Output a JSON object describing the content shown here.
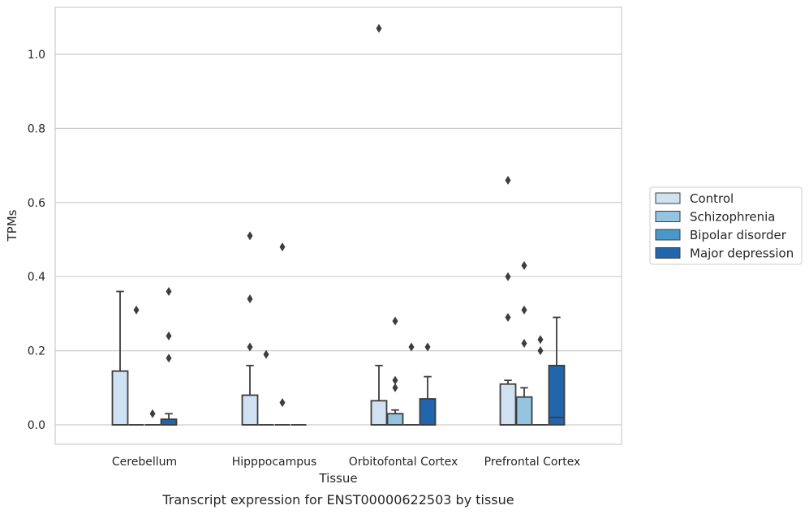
{
  "chart_data": {
    "type": "box",
    "xlabel": "Tissue",
    "ylabel": "TPMs",
    "caption": "Transcript expression for ENST00000622503 by tissue",
    "ylim": [
      -0.05,
      1.13
    ],
    "yticks": [
      "0.0",
      "0.2",
      "0.4",
      "0.6",
      "0.8",
      "1.0"
    ],
    "grid": "horizontal",
    "legend_position": "right",
    "categories": [
      "Cerebellum",
      "Hipppocampus",
      "Orbitofontal Cortex",
      "Prefrontal Cortex"
    ],
    "series": [
      {
        "name": "Control",
        "color": "#d0e1f2"
      },
      {
        "name": "Schizophrenia",
        "color": "#94c4df"
      },
      {
        "name": "Bipolar disorder",
        "color": "#4a98c9"
      },
      {
        "name": "Major depression",
        "color": "#2166ac"
      }
    ],
    "boxes": [
      [
        {
          "q1": 0,
          "median": 0,
          "q3": 0.145,
          "whisker_low": 0,
          "whisker_high": 0.36,
          "outliers": []
        },
        {
          "q1": 0,
          "median": 0,
          "q3": 0,
          "whisker_low": 0,
          "whisker_high": 0,
          "outliers": [
            0.31
          ]
        },
        {
          "q1": 0,
          "median": 0,
          "q3": 0,
          "whisker_low": 0,
          "whisker_high": 0,
          "outliers": [
            0.03
          ]
        },
        {
          "q1": 0,
          "median": 0,
          "q3": 0.015,
          "whisker_low": 0,
          "whisker_high": 0.03,
          "outliers": [
            0.36,
            0.24,
            0.18
          ]
        }
      ],
      [
        {
          "q1": 0,
          "median": 0,
          "q3": 0.08,
          "whisker_low": 0,
          "whisker_high": 0.16,
          "outliers": [
            0.51,
            0.34,
            0.21
          ]
        },
        {
          "q1": 0,
          "median": 0,
          "q3": 0,
          "whisker_low": 0,
          "whisker_high": 0,
          "outliers": [
            0.19
          ]
        },
        {
          "q1": 0,
          "median": 0,
          "q3": 0,
          "whisker_low": 0,
          "whisker_high": 0,
          "outliers": [
            0.48,
            0.06
          ]
        },
        {
          "q1": 0,
          "median": 0,
          "q3": 0,
          "whisker_low": 0,
          "whisker_high": 0,
          "outliers": []
        }
      ],
      [
        {
          "q1": 0,
          "median": 0,
          "q3": 0.065,
          "whisker_low": 0,
          "whisker_high": 0.16,
          "outliers": [
            1.07
          ]
        },
        {
          "q1": 0,
          "median": 0,
          "q3": 0.03,
          "whisker_low": 0,
          "whisker_high": 0.04,
          "outliers": [
            0.28,
            0.12,
            0.1
          ]
        },
        {
          "q1": 0,
          "median": 0,
          "q3": 0,
          "whisker_low": 0,
          "whisker_high": 0,
          "outliers": [
            0.21
          ]
        },
        {
          "q1": 0,
          "median": 0,
          "q3": 0.07,
          "whisker_low": 0,
          "whisker_high": 0.13,
          "outliers": [
            0.21
          ]
        }
      ],
      [
        {
          "q1": 0,
          "median": 0,
          "q3": 0.11,
          "whisker_low": 0,
          "whisker_high": 0.12,
          "outliers": [
            0.66,
            0.4,
            0.29
          ]
        },
        {
          "q1": 0,
          "median": 0,
          "q3": 0.075,
          "whisker_low": 0,
          "whisker_high": 0.1,
          "outliers": [
            0.43,
            0.31,
            0.22
          ]
        },
        {
          "q1": 0,
          "median": 0,
          "q3": 0,
          "whisker_low": 0,
          "whisker_high": 0,
          "outliers": [
            0.23,
            0.2
          ]
        },
        {
          "q1": 0,
          "median": 0.02,
          "q3": 0.16,
          "whisker_low": 0,
          "whisker_high": 0.29,
          "outliers": []
        }
      ]
    ]
  }
}
